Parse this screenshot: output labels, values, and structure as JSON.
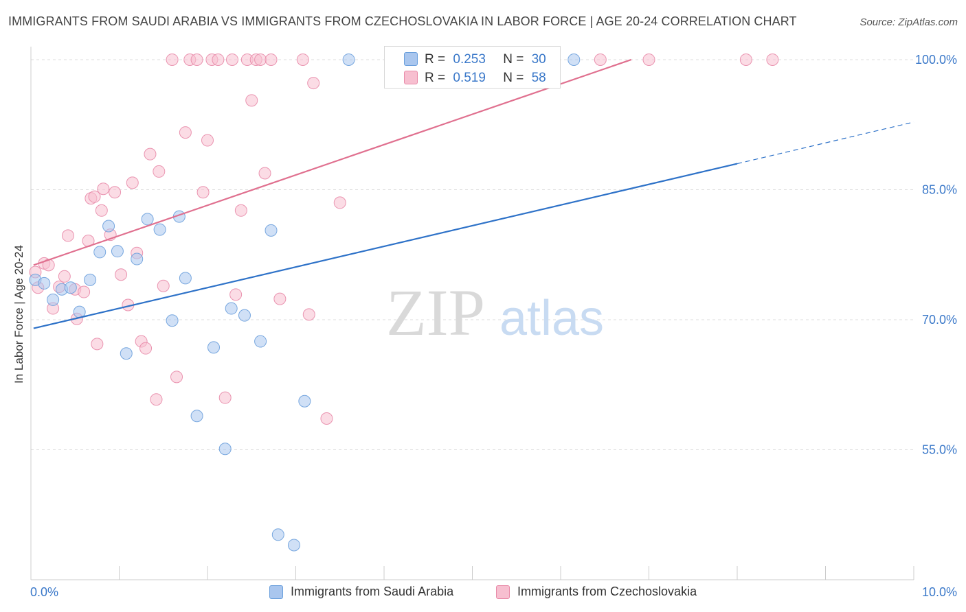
{
  "title": "IMMIGRANTS FROM SAUDI ARABIA VS IMMIGRANTS FROM CZECHOSLOVAKIA IN LABOR FORCE | AGE 20-24 CORRELATION CHART",
  "source": "Source: ZipAtlas.com",
  "watermark": {
    "zip": "ZIP",
    "atlas": "atlas"
  },
  "legend_box": {
    "rows": [
      {
        "r_label": "R =",
        "r_value": "0.253",
        "n_label": "N =",
        "n_value": "30",
        "color": "#a9c6ee"
      },
      {
        "r_label": "R =",
        "r_value": "0.519",
        "n_label": "N =",
        "n_value": "58",
        "color": "#f5b6c8"
      }
    ]
  },
  "colors": {
    "blue_fill": "#a9c6ee",
    "blue_stroke": "#6a9fdc",
    "blue_line": "#2e72c8",
    "pink_fill": "#f7bfd0",
    "pink_stroke": "#e88aa8",
    "pink_line": "#e0708f",
    "tick_label": "#3a78c9",
    "grid": "#dddddd"
  },
  "chart_data": {
    "type": "scatter",
    "title": "IMMIGRANTS FROM SAUDI ARABIA VS IMMIGRANTS FROM CZECHOSLOVAKIA IN LABOR FORCE | AGE 20-24 CORRELATION CHART",
    "xlabel": "",
    "ylabel": "In Labor Force | Age 20-24",
    "xlim": [
      0,
      10
    ],
    "ylim": [
      40,
      101.5
    ],
    "x_tick_labels": [
      {
        "value": 0,
        "label": "0.0%"
      },
      {
        "value": 10,
        "label": "10.0%"
      }
    ],
    "y_ticks": [
      {
        "value": 55,
        "label": "55.0%"
      },
      {
        "value": 70,
        "label": "70.0%"
      },
      {
        "value": 85,
        "label": "85.0%"
      },
      {
        "value": 100,
        "label": "100.0%"
      }
    ],
    "grid": true,
    "legend_position": "bottom",
    "series": [
      {
        "name": "Immigrants from Saudi Arabia",
        "color": "#a9c6ee",
        "trend": {
          "start": [
            0.03,
            69.0
          ],
          "end": [
            8.0,
            88.0
          ],
          "dashed_end": [
            10.0,
            92.8
          ]
        },
        "points": [
          [
            0.05,
            74.6
          ],
          [
            0.15,
            74.2
          ],
          [
            0.25,
            72.3
          ],
          [
            0.35,
            73.5
          ],
          [
            0.45,
            73.7
          ],
          [
            0.55,
            70.9
          ],
          [
            0.67,
            74.6
          ],
          [
            0.78,
            77.8
          ],
          [
            0.88,
            80.8
          ],
          [
            0.98,
            77.9
          ],
          [
            1.08,
            66.1
          ],
          [
            1.2,
            77.0
          ],
          [
            1.32,
            81.6
          ],
          [
            1.46,
            80.4
          ],
          [
            1.6,
            69.9
          ],
          [
            1.68,
            81.9
          ],
          [
            1.75,
            74.8
          ],
          [
            1.88,
            58.9
          ],
          [
            2.07,
            66.8
          ],
          [
            2.2,
            55.1
          ],
          [
            2.27,
            71.3
          ],
          [
            2.42,
            70.5
          ],
          [
            2.6,
            67.5
          ],
          [
            2.72,
            80.3
          ],
          [
            2.8,
            45.2
          ],
          [
            2.98,
            44.0
          ],
          [
            3.1,
            60.6
          ],
          [
            3.6,
            100.0
          ],
          [
            6.15,
            100.0
          ],
          [
            5.2,
            100.0
          ]
        ]
      },
      {
        "name": "Immigrants from Czechoslovakia",
        "color": "#f5b6c8",
        "trend": {
          "start": [
            0.03,
            76.3
          ],
          "end": [
            6.8,
            100.0
          ]
        },
        "points": [
          [
            0.05,
            75.5
          ],
          [
            0.08,
            73.7
          ],
          [
            0.15,
            76.5
          ],
          [
            0.2,
            76.3
          ],
          [
            0.25,
            71.3
          ],
          [
            0.32,
            73.8
          ],
          [
            0.38,
            75.0
          ],
          [
            0.42,
            79.7
          ],
          [
            0.5,
            73.5
          ],
          [
            0.52,
            70.1
          ],
          [
            0.6,
            73.2
          ],
          [
            0.65,
            79.1
          ],
          [
            0.68,
            84.0
          ],
          [
            0.72,
            84.2
          ],
          [
            0.75,
            67.2
          ],
          [
            0.8,
            82.6
          ],
          [
            0.82,
            85.1
          ],
          [
            0.9,
            79.8
          ],
          [
            0.95,
            84.7
          ],
          [
            1.02,
            75.2
          ],
          [
            1.1,
            71.7
          ],
          [
            1.15,
            85.8
          ],
          [
            1.2,
            77.7
          ],
          [
            1.25,
            67.5
          ],
          [
            1.3,
            66.7
          ],
          [
            1.35,
            89.1
          ],
          [
            1.42,
            60.8
          ],
          [
            1.45,
            87.1
          ],
          [
            1.5,
            73.9
          ],
          [
            1.6,
            100.0
          ],
          [
            1.65,
            63.4
          ],
          [
            1.75,
            91.6
          ],
          [
            1.8,
            100.0
          ],
          [
            1.88,
            100.0
          ],
          [
            1.95,
            84.7
          ],
          [
            2.0,
            90.7
          ],
          [
            2.05,
            100.0
          ],
          [
            2.12,
            100.0
          ],
          [
            2.2,
            61.0
          ],
          [
            2.28,
            100.0
          ],
          [
            2.32,
            72.9
          ],
          [
            2.38,
            82.6
          ],
          [
            2.45,
            100.0
          ],
          [
            2.5,
            95.3
          ],
          [
            2.55,
            100.0
          ],
          [
            2.6,
            100.0
          ],
          [
            2.65,
            86.9
          ],
          [
            2.72,
            100.0
          ],
          [
            2.82,
            72.4
          ],
          [
            3.08,
            100.0
          ],
          [
            3.15,
            70.6
          ],
          [
            3.2,
            97.3
          ],
          [
            3.35,
            58.6
          ],
          [
            3.5,
            83.5
          ],
          [
            6.45,
            100.0
          ],
          [
            7.0,
            100.0
          ],
          [
            8.1,
            100.0
          ],
          [
            8.4,
            100.0
          ]
        ]
      }
    ]
  }
}
